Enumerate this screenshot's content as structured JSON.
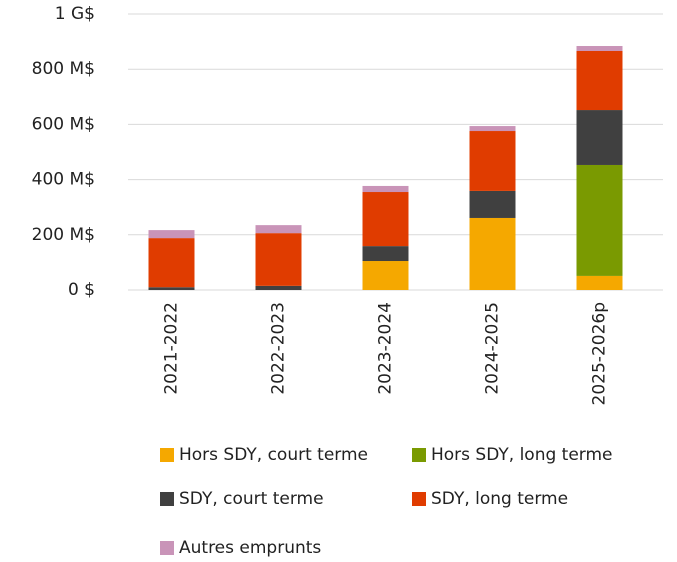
{
  "chart_data": {
    "type": "stacked_bar",
    "categories": [
      "2021-2022",
      "2022-2023",
      "2023-2024",
      "2024-2025",
      "2025-2026p"
    ],
    "series": [
      {
        "name": "Hors SDY, court terme",
        "color": "#f5a800",
        "values": [
          0,
          0,
          105,
          261,
          51
        ]
      },
      {
        "name": "Hors SDY, long terme",
        "color": "#7a9a01",
        "values": [
          0,
          0,
          0,
          0,
          402
        ]
      },
      {
        "name": "SDY, court terme",
        "color": "#404040",
        "values": [
          10,
          15,
          54,
          98,
          199
        ]
      },
      {
        "name": "SDY, long terme",
        "color": "#e03c00",
        "values": [
          178,
          191,
          196,
          217,
          214
        ]
      },
      {
        "name": "Autres emprunts",
        "color": "#c994b8",
        "values": [
          29,
          29,
          22,
          18,
          18
        ]
      }
    ],
    "ylim": [
      0,
      1000
    ],
    "yticks": [
      {
        "value": 0,
        "label": "0 $"
      },
      {
        "value": 200,
        "label": "200 M$"
      },
      {
        "value": 400,
        "label": "400 M$"
      },
      {
        "value": 600,
        "label": "600 M$"
      },
      {
        "value": 800,
        "label": "800 M$"
      },
      {
        "value": 1000,
        "label": "1 G$"
      }
    ],
    "grid": true
  }
}
